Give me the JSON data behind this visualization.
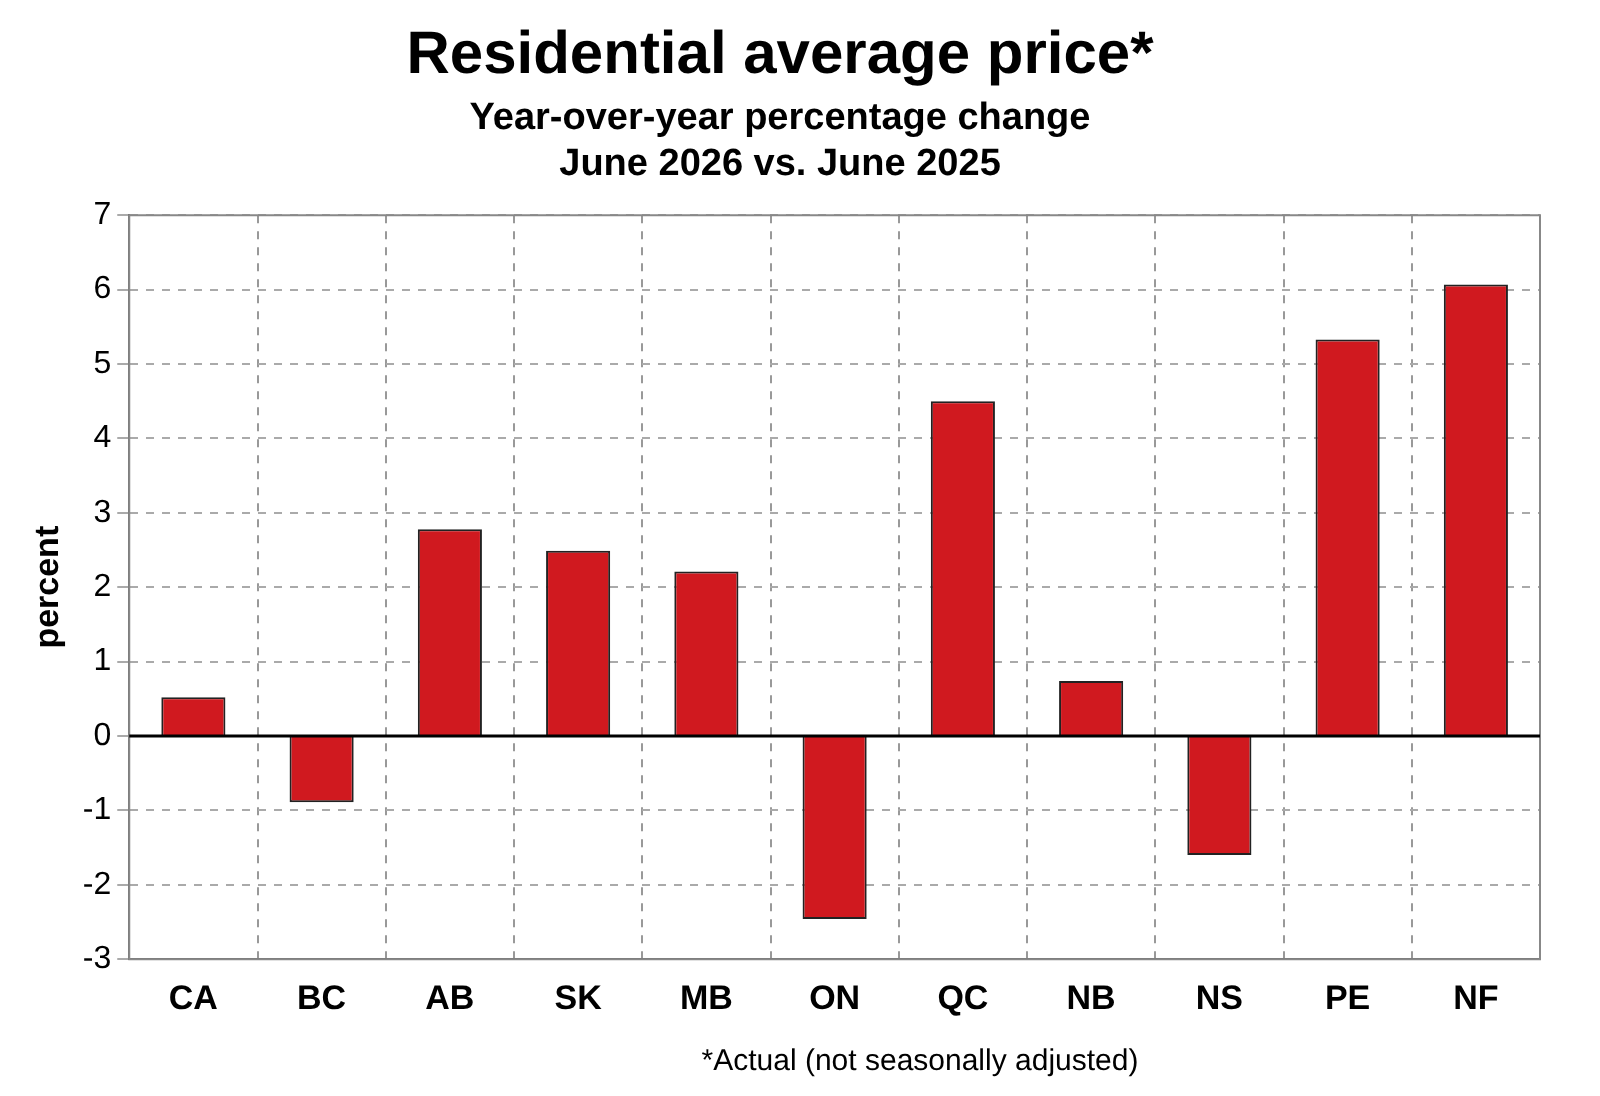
{
  "chart_data": {
    "type": "bar",
    "title": "Residential average price*",
    "subtitle": "Year-over-year percentage change\nJune 2026 vs. June 2025",
    "ylabel": "percent",
    "categories": [
      "CA",
      "BC",
      "AB",
      "SK",
      "MB",
      "ON",
      "QC",
      "NB",
      "NS",
      "PE",
      "NF"
    ],
    "values": [
      0.52,
      -0.89,
      2.78,
      2.49,
      2.21,
      -2.46,
      4.5,
      0.74,
      -1.6,
      5.33,
      6.07
    ],
    "color": "#d0191f",
    "ylim": [
      -3,
      7
    ],
    "yticks": [
      -3,
      -2,
      -1,
      0,
      1,
      2,
      3,
      4,
      5,
      6,
      7
    ],
    "grid": true,
    "legend": false,
    "ref_lines": [
      {
        "axis": "y",
        "value": 0,
        "color": "#000000"
      }
    ],
    "annotations": [
      "*Actual (not seasonally adjusted)"
    ]
  }
}
